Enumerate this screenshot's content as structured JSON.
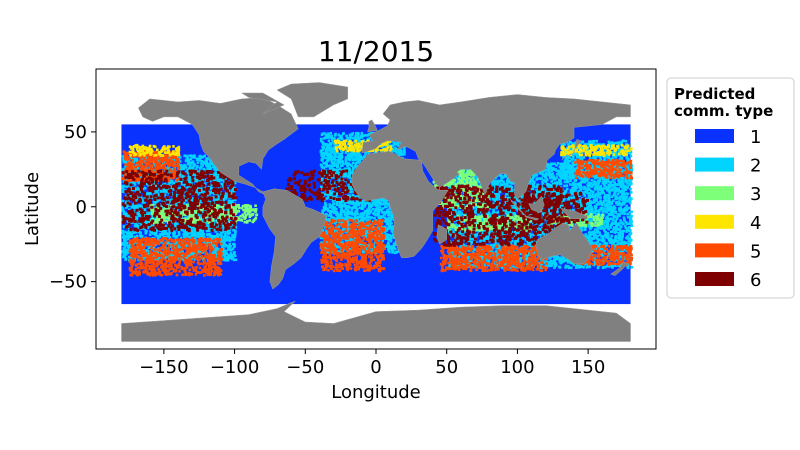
{
  "chart_data": {
    "type": "scatter",
    "title": "11/2015",
    "xlabel": "Longitude",
    "ylabel": "Latitude",
    "xlim": [
      -198,
      198
    ],
    "ylim": [
      -95,
      92
    ],
    "x_ticks": [
      -150,
      -100,
      -50,
      0,
      50,
      100,
      150
    ],
    "x_tick_labels": [
      "−150",
      "−100",
      "−50",
      "0",
      "50",
      "100",
      "150"
    ],
    "y_ticks": [
      -50,
      0,
      50
    ],
    "y_tick_labels": [
      "−50",
      "0",
      "50"
    ],
    "legend": {
      "title_lines": [
        "Predicted",
        "comm. type"
      ],
      "placement": "outside-right",
      "entries": [
        {
          "label": "1",
          "color": "#0a32ff"
        },
        {
          "label": "2",
          "color": "#00d4ff"
        },
        {
          "label": "3",
          "color": "#7dff7a"
        },
        {
          "label": "4",
          "color": "#ffe600"
        },
        {
          "label": "5",
          "color": "#ff4a00"
        },
        {
          "label": "6",
          "color": "#7f0000"
        }
      ]
    },
    "land_color": "#808080",
    "regions": [
      {
        "type": "1",
        "lon": [
          -180,
          180
        ],
        "lat": [
          -65,
          55
        ]
      },
      {
        "type": "2",
        "lon": [
          -180,
          -100
        ],
        "lat": [
          -35,
          35
        ]
      },
      {
        "type": "2",
        "lon": [
          -40,
          20
        ],
        "lat": [
          -30,
          50
        ]
      },
      {
        "type": "2",
        "lon": [
          50,
          180
        ],
        "lat": [
          -40,
          30
        ]
      },
      {
        "type": "2",
        "lon": [
          130,
          180
        ],
        "lat": [
          20,
          45
        ]
      },
      {
        "type": "5",
        "lon": [
          -175,
          -110
        ],
        "lat": [
          -45,
          -20
        ]
      },
      {
        "type": "5",
        "lon": [
          -180,
          -140
        ],
        "lat": [
          18,
          38
        ]
      },
      {
        "type": "5",
        "lon": [
          -40,
          5
        ],
        "lat": [
          -42,
          -8
        ]
      },
      {
        "type": "5",
        "lon": [
          45,
          120
        ],
        "lat": [
          -42,
          -25
        ]
      },
      {
        "type": "5",
        "lon": [
          140,
          180
        ],
        "lat": [
          -38,
          -25
        ]
      },
      {
        "type": "5",
        "lon": [
          140,
          180
        ],
        "lat": [
          20,
          32
        ]
      },
      {
        "type": "3",
        "lon": [
          -160,
          -85
        ],
        "lat": [
          -10,
          2
        ]
      },
      {
        "type": "3",
        "lon": [
          40,
          80
        ],
        "lat": [
          0,
          25
        ]
      },
      {
        "type": "3",
        "lon": [
          50,
          110
        ],
        "lat": [
          -15,
          -5
        ]
      },
      {
        "type": "3",
        "lon": [
          120,
          160
        ],
        "lat": [
          -12,
          -4
        ]
      },
      {
        "type": "4",
        "lon": [
          -175,
          -140
        ],
        "lat": [
          35,
          42
        ]
      },
      {
        "type": "4",
        "lon": [
          -30,
          10
        ],
        "lat": [
          38,
          45
        ]
      },
      {
        "type": "4",
        "lon": [
          130,
          180
        ],
        "lat": [
          35,
          42
        ]
      },
      {
        "type": "6",
        "lon": [
          -180,
          -100
        ],
        "lat": [
          -15,
          25
        ]
      },
      {
        "type": "6",
        "lon": [
          -65,
          -5
        ],
        "lat": [
          5,
          25
        ]
      },
      {
        "type": "6",
        "lon": [
          40,
          130
        ],
        "lat": [
          -25,
          15
        ]
      },
      {
        "type": "6",
        "lon": [
          105,
          150
        ],
        "lat": [
          -10,
          10
        ]
      }
    ],
    "land": [
      [
        [
          -168,
          66
        ],
        [
          -160,
          72
        ],
        [
          -140,
          70
        ],
        [
          -125,
          71
        ],
        [
          -110,
          69
        ],
        [
          -95,
          72
        ],
        [
          -80,
          73
        ],
        [
          -70,
          68
        ],
        [
          -60,
          62
        ],
        [
          -55,
          52
        ],
        [
          -65,
          45
        ],
        [
          -70,
          42
        ],
        [
          -76,
          38
        ],
        [
          -80,
          32
        ],
        [
          -81,
          25
        ],
        [
          -85,
          29
        ],
        [
          -90,
          30
        ],
        [
          -97,
          27
        ],
        [
          -97,
          21
        ],
        [
          -92,
          18
        ],
        [
          -87,
          15
        ],
        [
          -83,
          10
        ],
        [
          -78,
          8
        ],
        [
          -80,
          10
        ],
        [
          -86,
          13
        ],
        [
          -92,
          15
        ],
        [
          -100,
          17
        ],
        [
          -105,
          20
        ],
        [
          -110,
          23
        ],
        [
          -115,
          29
        ],
        [
          -118,
          33
        ],
        [
          -122,
          37
        ],
        [
          -124,
          42
        ],
        [
          -125,
          48
        ],
        [
          -130,
          55
        ],
        [
          -140,
          60
        ],
        [
          -150,
          60
        ],
        [
          -158,
          57
        ],
        [
          -165,
          60
        ]
      ],
      [
        [
          -80,
          10
        ],
        [
          -72,
          12
        ],
        [
          -63,
          11
        ],
        [
          -52,
          5
        ],
        [
          -50,
          0
        ],
        [
          -44,
          -2
        ],
        [
          -35,
          -6
        ],
        [
          -37,
          -13
        ],
        [
          -40,
          -20
        ],
        [
          -46,
          -24
        ],
        [
          -49,
          -28
        ],
        [
          -53,
          -34
        ],
        [
          -58,
          -38
        ],
        [
          -64,
          -42
        ],
        [
          -66,
          -48
        ],
        [
          -69,
          -52
        ],
        [
          -73,
          -55
        ],
        [
          -75,
          -50
        ],
        [
          -74,
          -40
        ],
        [
          -72,
          -30
        ],
        [
          -71,
          -20
        ],
        [
          -75,
          -15
        ],
        [
          -80,
          -6
        ],
        [
          -80,
          0
        ],
        [
          -78,
          5
        ]
      ],
      [
        [
          -55,
          60
        ],
        [
          -44,
          60
        ],
        [
          -30,
          68
        ],
        [
          -20,
          72
        ],
        [
          -20,
          80
        ],
        [
          -40,
          83
        ],
        [
          -60,
          82
        ],
        [
          -70,
          78
        ],
        [
          -60,
          72
        ]
      ],
      [
        [
          -10,
          36
        ],
        [
          -9,
          43
        ],
        [
          -2,
          44
        ],
        [
          -5,
          48
        ],
        [
          2,
          51
        ],
        [
          8,
          54
        ],
        [
          10,
          58
        ],
        [
          5,
          62
        ],
        [
          10,
          68
        ],
        [
          20,
          70
        ],
        [
          30,
          71
        ],
        [
          45,
          68
        ],
        [
          60,
          70
        ],
        [
          80,
          73
        ],
        [
          100,
          75
        ],
        [
          120,
          73
        ],
        [
          140,
          72
        ],
        [
          160,
          70
        ],
        [
          180,
          68
        ],
        [
          180,
          60
        ],
        [
          170,
          60
        ],
        [
          160,
          55
        ],
        [
          140,
          53
        ],
        [
          140,
          46
        ],
        [
          135,
          43
        ],
        [
          130,
          42
        ],
        [
          127,
          38
        ],
        [
          126,
          35
        ],
        [
          121,
          31
        ],
        [
          120,
          25
        ],
        [
          110,
          21
        ],
        [
          108,
          16
        ],
        [
          106,
          10
        ],
        [
          100,
          5
        ],
        [
          103,
          1
        ],
        [
          98,
          8
        ],
        [
          98,
          16
        ],
        [
          95,
          17
        ],
        [
          92,
          22
        ],
        [
          88,
          22
        ],
        [
          85,
          20
        ],
        [
          80,
          15
        ],
        [
          77,
          8
        ],
        [
          72,
          20
        ],
        [
          67,
          25
        ],
        [
          60,
          25
        ],
        [
          57,
          23
        ],
        [
          59,
          22
        ],
        [
          52,
          17
        ],
        [
          45,
          13
        ],
        [
          42,
          16
        ],
        [
          38,
          22
        ],
        [
          34,
          28
        ],
        [
          30,
          32
        ],
        [
          28,
          37
        ],
        [
          22,
          40
        ],
        [
          20,
          40
        ],
        [
          15,
          38
        ],
        [
          18,
          43
        ],
        [
          12,
          44
        ],
        [
          8,
          44
        ],
        [
          3,
          42
        ],
        [
          0,
          39
        ],
        [
          -6,
          37
        ]
      ],
      [
        [
          -17,
          21
        ],
        [
          -17,
          15
        ],
        [
          -15,
          11
        ],
        [
          -12,
          7
        ],
        [
          -8,
          4
        ],
        [
          0,
          5
        ],
        [
          5,
          6
        ],
        [
          9,
          4
        ],
        [
          10,
          0
        ],
        [
          12,
          -5
        ],
        [
          13,
          -12
        ],
        [
          12,
          -17
        ],
        [
          15,
          -27
        ],
        [
          18,
          -34
        ],
        [
          22,
          -34
        ],
        [
          27,
          -33
        ],
        [
          32,
          -28
        ],
        [
          35,
          -24
        ],
        [
          40,
          -16
        ],
        [
          40,
          -10
        ],
        [
          40,
          -3
        ],
        [
          45,
          2
        ],
        [
          51,
          11
        ],
        [
          45,
          11
        ],
        [
          43,
          12
        ],
        [
          37,
          17
        ],
        [
          33,
          24
        ],
        [
          32,
          31
        ],
        [
          20,
          32
        ],
        [
          10,
          37
        ],
        [
          0,
          36
        ],
        [
          -6,
          35
        ],
        [
          -10,
          30
        ],
        [
          -13,
          27
        ]
      ],
      [
        [
          114,
          -22
        ],
        [
          122,
          -18
        ],
        [
          127,
          -14
        ],
        [
          132,
          -11
        ],
        [
          136,
          -12
        ],
        [
          137,
          -16
        ],
        [
          142,
          -11
        ],
        [
          146,
          -18
        ],
        [
          150,
          -23
        ],
        [
          153,
          -28
        ],
        [
          151,
          -34
        ],
        [
          147,
          -38
        ],
        [
          140,
          -38
        ],
        [
          136,
          -35
        ],
        [
          130,
          -32
        ],
        [
          124,
          -33
        ],
        [
          118,
          -35
        ],
        [
          115,
          -33
        ],
        [
          113,
          -26
        ]
      ],
      [
        [
          -180,
          -78
        ],
        [
          -150,
          -76
        ],
        [
          -120,
          -74
        ],
        [
          -90,
          -72
        ],
        [
          -70,
          -68
        ],
        [
          -60,
          -64
        ],
        [
          -57,
          -63
        ],
        [
          -65,
          -70
        ],
        [
          -50,
          -77
        ],
        [
          -30,
          -78
        ],
        [
          0,
          -70
        ],
        [
          30,
          -69
        ],
        [
          60,
          -67
        ],
        [
          90,
          -66
        ],
        [
          120,
          -66
        ],
        [
          150,
          -69
        ],
        [
          170,
          -71
        ],
        [
          180,
          -78
        ],
        [
          180,
          -90
        ],
        [
          -180,
          -90
        ]
      ],
      [
        [
          44,
          -12
        ],
        [
          50,
          -15
        ],
        [
          50,
          -22
        ],
        [
          45,
          -25
        ],
        [
          43,
          -20
        ]
      ],
      [
        [
          -6,
          50
        ],
        [
          1,
          51
        ],
        [
          -1,
          55
        ],
        [
          -3,
          58
        ],
        [
          -5,
          57
        ],
        [
          -5,
          53
        ]
      ],
      [
        [
          131,
          31
        ],
        [
          135,
          34
        ],
        [
          140,
          36
        ],
        [
          141,
          41
        ],
        [
          142,
          45
        ],
        [
          145,
          44
        ],
        [
          141,
          39
        ],
        [
          139,
          35
        ],
        [
          133,
          33
        ]
      ],
      [
        [
          95,
          5
        ],
        [
          105,
          -5
        ],
        [
          106,
          -6
        ],
        [
          102,
          -3
        ],
        [
          97,
          2
        ]
      ],
      [
        [
          108,
          2
        ],
        [
          110,
          -2
        ],
        [
          116,
          -4
        ],
        [
          119,
          1
        ],
        [
          117,
          7
        ],
        [
          112,
          2
        ]
      ],
      [
        [
          131,
          -1
        ],
        [
          141,
          -3
        ],
        [
          150,
          -7
        ],
        [
          145,
          -8
        ],
        [
          138,
          -8
        ],
        [
          132,
          -3
        ]
      ],
      [
        [
          166,
          -45
        ],
        [
          172,
          -41
        ],
        [
          175,
          -37
        ],
        [
          178,
          -38
        ],
        [
          174,
          -42
        ],
        [
          169,
          -46
        ]
      ],
      [
        [
          -80,
          62
        ],
        [
          -70,
          70
        ],
        [
          -90,
          73
        ],
        [
          -95,
          76
        ],
        [
          -80,
          76
        ],
        [
          -65,
          68
        ]
      ],
      [
        [
          105,
          -6
        ],
        [
          115,
          -8
        ],
        [
          114,
          -9
        ],
        [
          106,
          -7
        ]
      ]
    ]
  }
}
